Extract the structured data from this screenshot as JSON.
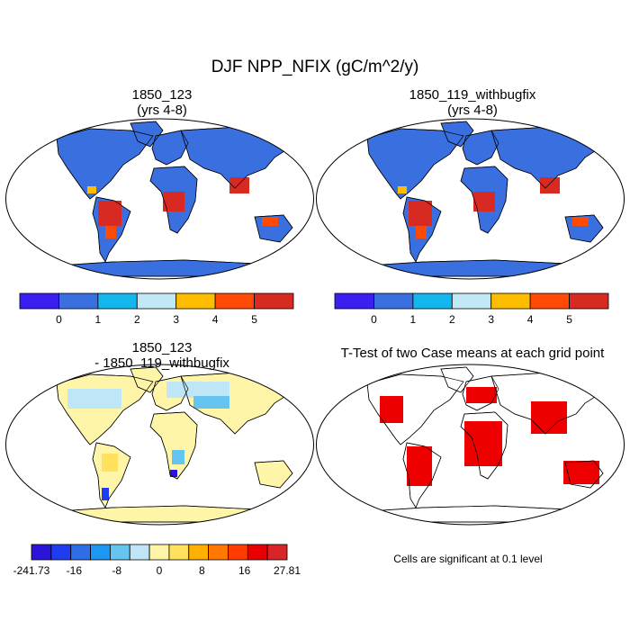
{
  "title": "DJF NPP_NFIX (gC/m^2/y)",
  "panels": [
    {
      "id": "p1",
      "title_line1": "1850_123",
      "title_line2": "(yrs 4-8)"
    },
    {
      "id": "p2",
      "title_line1": "1850_119_withbugfix",
      "title_line2": "(yrs 4-8)"
    },
    {
      "id": "p3",
      "title_line1": "1850_123",
      "title_line2": "- 1850_119_withbugfix"
    },
    {
      "id": "p4",
      "title_line1": "T-Test of two Case means at each grid point",
      "title_line2": ""
    }
  ],
  "colorbar_abs": {
    "colors": [
      "#3b1ff0",
      "#3a6fe0",
      "#14b6ee",
      "#c3e8f5",
      "#ffbd00",
      "#ff4a05",
      "#d72a23"
    ],
    "tick_labels": [
      "0",
      "1",
      "2",
      "3",
      "4",
      "5"
    ]
  },
  "colorbar_diff": {
    "colors": [
      "#2b14d8",
      "#1f3df0",
      "#2f6de6",
      "#1c98f2",
      "#65c5f0",
      "#bfe6f6",
      "#fff5a8",
      "#ffe15e",
      "#ffb000",
      "#ff7800",
      "#ff3c00",
      "#e60000",
      "#d92525"
    ],
    "tick_labels": [
      "-241.73",
      "-16",
      "-8",
      "0",
      "8",
      "16",
      "27.81"
    ]
  },
  "ttest_color": "#ee0000",
  "significance_note": "Cells are significant at 0.1 level"
}
